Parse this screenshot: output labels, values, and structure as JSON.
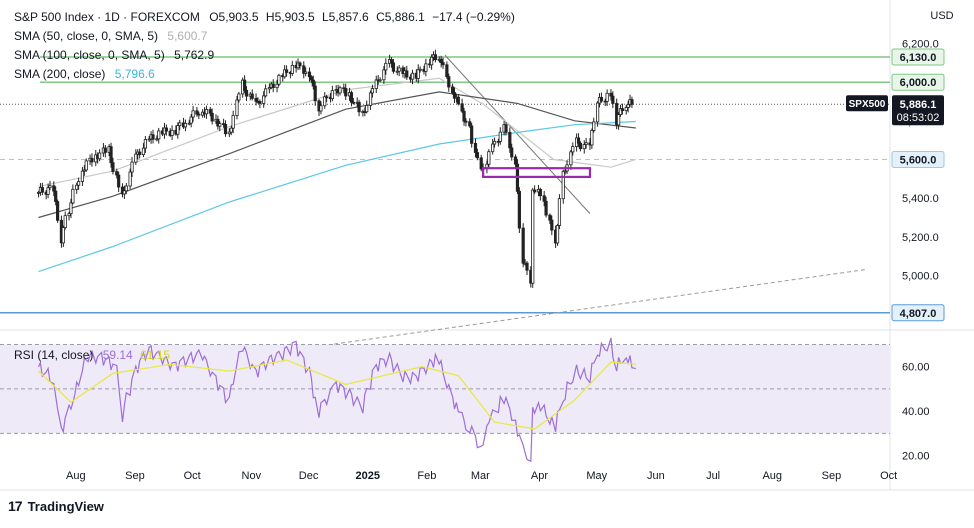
{
  "header": {
    "title_line": "S&P 500 Index · 1D · FOREXCOM",
    "o_label": "O",
    "o": "5,903.5",
    "h_label": "H",
    "h": "5,903.5",
    "l_label": "L",
    "l": "5,857.6",
    "c_label": "C",
    "c": "5,886.1",
    "change": "−17.4 (−0.29%)",
    "currency": "USD"
  },
  "indicators": {
    "sma50": {
      "label": "SMA (50, close, 0, SMA, 5)",
      "value": "5,600.7",
      "color": "#c8c8c8"
    },
    "sma100": {
      "label": "SMA (100, close, 0, SMA, 5)",
      "value": "5,762.9",
      "color": "#555555"
    },
    "sma200": {
      "label": "SMA (200, close)",
      "value": "5,796.6",
      "color": "#5bc8e8"
    },
    "rsi": {
      "label": "RSI (14, close)",
      "value": "59.14",
      "ma_value": "61.15"
    }
  },
  "price_tags": {
    "symbol": "SPX500",
    "last": "5,886.1",
    "countdown": "08:53:02",
    "level_6130": "6,130.0",
    "level_6000": "6,000.0",
    "level_5600": "5,600.0",
    "level_4807": "4,807.0"
  },
  "branding": {
    "logo": "17",
    "name": "TradingView"
  },
  "colors": {
    "up": "#26a69a",
    "down": "#222222",
    "candle": "#222222",
    "resistance": "#81c784",
    "support": "#5b9bd5",
    "dashed_support": "#9ec9ea",
    "box": "#9c27b0",
    "rsi": "#9c6fd6",
    "rsi_ma": "#e8e84a",
    "rsi_bg": "#efeaf8",
    "tag_dark": "#131722",
    "tag_blue": "#2962ff"
  },
  "chart_data": [
    {
      "type": "candlestick",
      "symbol": "SPX500",
      "timeframe": "1D",
      "x_ticks": [
        "Aug",
        "Sep",
        "Oct",
        "Nov",
        "Dec",
        "2025",
        "Feb",
        "Mar",
        "Apr",
        "May",
        "Jun",
        "Jul",
        "Aug",
        "Sep",
        "Oct"
      ],
      "y_ticks": [
        "6,200.0",
        "6,000.0",
        "5,800.0",
        "5,600.0",
        "5,400.0",
        "5,200.0",
        "5,000.0"
      ],
      "ylim": [
        4780,
        6270
      ],
      "series": [
        {
          "name": "S&P 500 close (approx.)",
          "points": [
            [
              "2024-07-24",
              5430
            ],
            [
              "2024-08-01",
              5450
            ],
            [
              "2024-08-05",
              5190
            ],
            [
              "2024-08-09",
              5340
            ],
            [
              "2024-08-16",
              5550
            ],
            [
              "2024-08-23",
              5620
            ],
            [
              "2024-08-30",
              5650
            ],
            [
              "2024-09-06",
              5400
            ],
            [
              "2024-09-13",
              5610
            ],
            [
              "2024-09-20",
              5700
            ],
            [
              "2024-09-27",
              5740
            ],
            [
              "2024-10-04",
              5750
            ],
            [
              "2024-10-11",
              5810
            ],
            [
              "2024-10-18",
              5860
            ],
            [
              "2024-10-25",
              5810
            ],
            [
              "2024-11-01",
              5730
            ],
            [
              "2024-11-08",
              5990
            ],
            [
              "2024-11-15",
              5880
            ],
            [
              "2024-11-22",
              5960
            ],
            [
              "2024-11-29",
              6030
            ],
            [
              "2024-12-06",
              6090
            ],
            [
              "2024-12-13",
              6050
            ],
            [
              "2024-12-18",
              5870
            ],
            [
              "2024-12-27",
              5970
            ],
            [
              "2025-01-03",
              5940
            ],
            [
              "2025-01-10",
              5830
            ],
            [
              "2025-01-17",
              5990
            ],
            [
              "2025-01-24",
              6100
            ],
            [
              "2025-01-31",
              6040
            ],
            [
              "2025-02-07",
              6030
            ],
            [
              "2025-02-14",
              6110
            ],
            [
              "2025-02-19",
              6140
            ],
            [
              "2025-02-26",
              5960
            ],
            [
              "2025-03-03",
              5850
            ],
            [
              "2025-03-07",
              5760
            ],
            [
              "2025-03-13",
              5530
            ],
            [
              "2025-03-19",
              5660
            ],
            [
              "2025-03-25",
              5770
            ],
            [
              "2025-03-31",
              5580
            ],
            [
              "2025-04-04",
              5080
            ],
            [
              "2025-04-08",
              4982
            ],
            [
              "2025-04-09",
              5460
            ],
            [
              "2025-04-15",
              5390
            ],
            [
              "2025-04-21",
              5160
            ],
            [
              "2025-04-25",
              5520
            ],
            [
              "2025-05-02",
              5690
            ],
            [
              "2025-05-09",
              5660
            ],
            [
              "2025-05-13",
              5890
            ],
            [
              "2025-05-20",
              5940
            ],
            [
              "2025-05-23",
              5800
            ],
            [
              "2025-05-28",
              5890
            ],
            [
              "2025-06-02",
              5886
            ]
          ]
        },
        {
          "name": "SMA (50, close, 0, SMA, 5)",
          "points": [
            [
              "2024-07-24",
              5460
            ],
            [
              "2024-09-01",
              5540
            ],
            [
              "2024-11-01",
              5770
            ],
            [
              "2025-01-01",
              5960
            ],
            [
              "2025-02-19",
              6020
            ],
            [
              "2025-03-15",
              5880
            ],
            [
              "2025-04-20",
              5600
            ],
            [
              "2025-05-20",
              5560
            ],
            [
              "2025-06-02",
              5600.7
            ]
          ]
        },
        {
          "name": "SMA (100, close, 0, SMA, 5)",
          "points": [
            [
              "2024-07-24",
              5300
            ],
            [
              "2024-09-01",
              5410
            ],
            [
              "2024-11-01",
              5630
            ],
            [
              "2025-01-01",
              5860
            ],
            [
              "2025-02-19",
              5950
            ],
            [
              "2025-04-01",
              5890
            ],
            [
              "2025-05-01",
              5800
            ],
            [
              "2025-06-02",
              5762.9
            ]
          ]
        },
        {
          "name": "SMA (200, close)",
          "points": [
            [
              "2024-07-24",
              5020
            ],
            [
              "2024-09-01",
              5150
            ],
            [
              "2024-11-01",
              5380
            ],
            [
              "2025-01-01",
              5570
            ],
            [
              "2025-02-19",
              5680
            ],
            [
              "2025-04-01",
              5740
            ],
            [
              "2025-05-01",
              5780
            ],
            [
              "2025-06-02",
              5796.6
            ]
          ]
        }
      ],
      "annotations": {
        "horizontal_levels": [
          6130.0,
          6000.0,
          5600.0,
          4807.0
        ],
        "support_box": {
          "x": [
            "2025-03-14",
            "2025-05-09"
          ],
          "y": [
            5510,
            5555
          ]
        },
        "downtrend_line": [
          [
            "2025-02-22",
            6140
          ],
          [
            "2025-05-09",
            5320
          ]
        ],
        "long_trendline": [
          [
            "2024-12-15",
            4630
          ],
          [
            "2025-09-30",
            5030
          ]
        ]
      }
    },
    {
      "type": "line",
      "name": "RSI (14, close)",
      "ylim": [
        18,
        72
      ],
      "y_ticks": [
        "60.00",
        "40.00",
        "20.00"
      ],
      "bands": [
        30,
        50,
        70
      ],
      "series": [
        {
          "name": "RSI (14, close)",
          "points": [
            [
              "2024-07-24",
              60
            ],
            [
              "2024-08-01",
              55
            ],
            [
              "2024-08-05",
              30
            ],
            [
              "2024-08-12",
              47
            ],
            [
              "2024-08-19",
              65
            ],
            [
              "2024-08-26",
              64
            ],
            [
              "2024-09-03",
              60
            ],
            [
              "2024-09-06",
              38
            ],
            [
              "2024-09-13",
              58
            ],
            [
              "2024-09-20",
              68
            ],
            [
              "2024-09-27",
              64
            ],
            [
              "2024-10-04",
              60
            ],
            [
              "2024-10-11",
              64
            ],
            [
              "2024-10-18",
              66
            ],
            [
              "2024-10-25",
              54
            ],
            [
              "2024-11-01",
              45
            ],
            [
              "2024-11-08",
              70
            ],
            [
              "2024-11-15",
              57
            ],
            [
              "2024-11-22",
              63
            ],
            [
              "2024-11-29",
              66
            ],
            [
              "2024-12-06",
              70
            ],
            [
              "2024-12-13",
              58
            ],
            [
              "2024-12-18",
              40
            ],
            [
              "2024-12-27",
              52
            ],
            [
              "2025-01-03",
              48
            ],
            [
              "2025-01-10",
              42
            ],
            [
              "2025-01-17",
              60
            ],
            [
              "2025-01-24",
              64
            ],
            [
              "2025-01-31",
              56
            ],
            [
              "2025-02-07",
              55
            ],
            [
              "2025-02-14",
              61
            ],
            [
              "2025-02-19",
              64
            ],
            [
              "2025-02-26",
              46
            ],
            [
              "2025-03-03",
              37
            ],
            [
              "2025-03-07",
              33
            ],
            [
              "2025-03-13",
              24
            ],
            [
              "2025-03-19",
              38
            ],
            [
              "2025-03-25",
              46
            ],
            [
              "2025-03-31",
              36
            ],
            [
              "2025-04-04",
              22
            ],
            [
              "2025-04-08",
              20
            ],
            [
              "2025-04-09",
              42
            ],
            [
              "2025-04-15",
              40
            ],
            [
              "2025-04-21",
              33
            ],
            [
              "2025-04-25",
              45
            ],
            [
              "2025-05-02",
              58
            ],
            [
              "2025-05-09",
              55
            ],
            [
              "2025-05-13",
              66
            ],
            [
              "2025-05-20",
              70
            ],
            [
              "2025-05-23",
              60
            ],
            [
              "2025-05-28",
              65
            ],
            [
              "2025-06-02",
              59.14
            ]
          ]
        },
        {
          "name": "RSI-based MA",
          "points": [
            [
              "2024-07-24",
              58
            ],
            [
              "2024-08-10",
              44
            ],
            [
              "2024-09-01",
              57
            ],
            [
              "2024-10-01",
              61
            ],
            [
              "2024-11-01",
              58
            ],
            [
              "2024-12-01",
              63
            ],
            [
              "2025-01-01",
              52
            ],
            [
              "2025-02-10",
              60
            ],
            [
              "2025-03-01",
              56
            ],
            [
              "2025-03-20",
              35
            ],
            [
              "2025-04-10",
              32
            ],
            [
              "2025-05-01",
              45
            ],
            [
              "2025-05-20",
              62
            ],
            [
              "2025-06-02",
              61.15
            ]
          ]
        }
      ]
    }
  ]
}
